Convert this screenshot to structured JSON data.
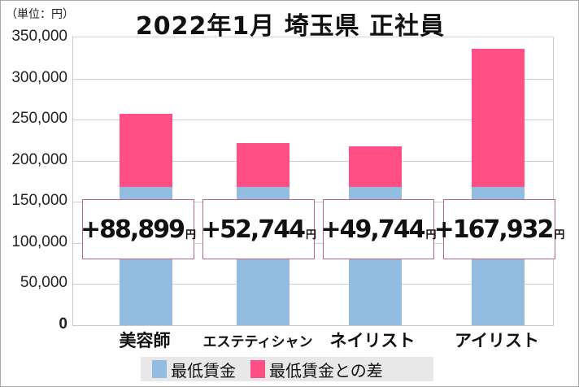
{
  "chart_data": {
    "type": "bar",
    "stacked": true,
    "title": "2022年1月 埼玉県 正社員",
    "unit_label": "（単位：円）",
    "xlabel": "",
    "ylabel": "",
    "ylim": [
      0,
      350000
    ],
    "yticks": [
      "350,000",
      "300,000",
      "250,000",
      "200,000",
      "150,000",
      "100,000",
      "50,000",
      "0"
    ],
    "ytick_values": [
      350000,
      300000,
      250000,
      200000,
      150000,
      100000,
      50000,
      0
    ],
    "grid": true,
    "legend_position": "bottom",
    "categories": [
      "美容師",
      "エステティシャン",
      "ネイリスト",
      "アイリスト"
    ],
    "series": [
      {
        "name": "最低賃金",
        "color": "#93bde0",
        "values": [
          168256,
          168256,
          168256,
          168256
        ]
      },
      {
        "name": "最低賃金との差",
        "color": "#ff4f85",
        "values": [
          88899,
          52744,
          49744,
          167932
        ]
      }
    ],
    "annotations": [
      "+88,899円",
      "+52,744円",
      "+49,744円",
      "+167,932円"
    ]
  },
  "labels": [
    {
      "value": "+88,899",
      "unit": "円"
    },
    {
      "value": "+52,744",
      "unit": "円"
    },
    {
      "value": "+49,744",
      "unit": "円"
    },
    {
      "value": "+167,932",
      "unit": "円"
    }
  ],
  "legend": [
    {
      "label": "最低賃金",
      "color": "#93bde0"
    },
    {
      "label": "最低賃金との差",
      "color": "#ff4f85"
    }
  ]
}
